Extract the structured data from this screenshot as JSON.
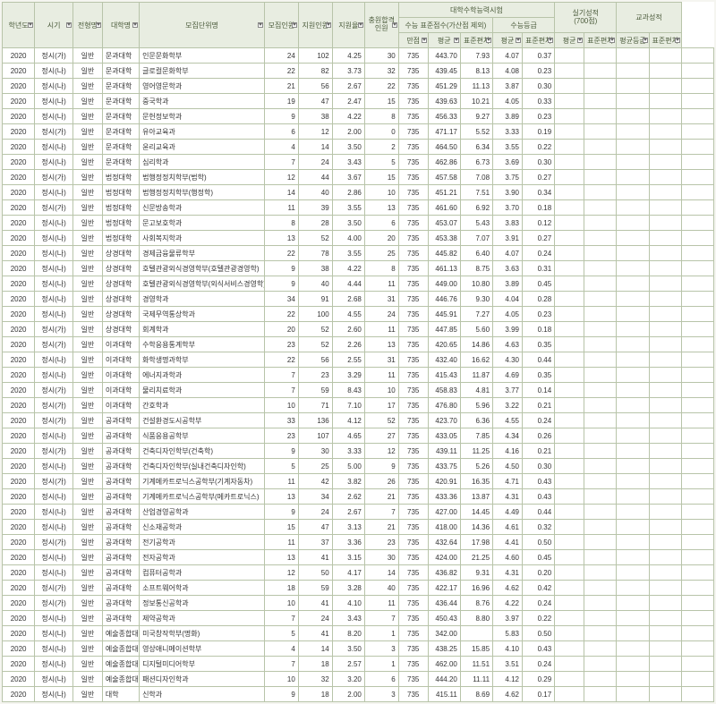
{
  "colors": {
    "header_bg": "#e8ede1",
    "border": "#b8c4a9",
    "text": "#333",
    "header_text": "#4a5a3a"
  },
  "fonts": {
    "size": 8,
    "family": "Malgun Gothic"
  },
  "header": {
    "r1": [
      "학년도",
      "시기",
      "전형명",
      "대학명",
      "모집단위명",
      "모집인원",
      "지원인원",
      "지원율",
      "충원합격\n인원",
      "대학수학능력시험",
      "실기성적\n(700점)",
      "교과성적"
    ],
    "r2_sub1": [
      "수능 표준점수(가산점 제외)",
      "수능등급"
    ],
    "r2_sub2": [
      "평균",
      "표준편차"
    ],
    "r2_sub3": [
      "평균등급",
      "표준편차"
    ],
    "r3": [
      "만점",
      "평균",
      "표준편차",
      "평균",
      "표준편차"
    ]
  },
  "rows": [
    [
      "2020",
      "정시(가)",
      "일반",
      "문과대학",
      "인문문화학부",
      "24",
      "102",
      "4.25",
      "30",
      "735",
      "443.70",
      "7.93",
      "4.07",
      "0.37",
      "",
      "",
      "",
      ""
    ],
    [
      "2020",
      "정시(나)",
      "일반",
      "문과대학",
      "글로컬문화학부",
      "22",
      "82",
      "3.73",
      "32",
      "735",
      "439.45",
      "8.13",
      "4.08",
      "0.23",
      "",
      "",
      "",
      ""
    ],
    [
      "2020",
      "정시(나)",
      "일반",
      "문과대학",
      "영어영문학과",
      "21",
      "56",
      "2.67",
      "22",
      "735",
      "451.29",
      "11.13",
      "3.87",
      "0.30",
      "",
      "",
      "",
      ""
    ],
    [
      "2020",
      "정시(나)",
      "일반",
      "문과대학",
      "중국학과",
      "19",
      "47",
      "2.47",
      "15",
      "735",
      "439.63",
      "10.21",
      "4.05",
      "0.33",
      "",
      "",
      "",
      ""
    ],
    [
      "2020",
      "정시(나)",
      "일반",
      "문과대학",
      "문헌정보학과",
      "9",
      "38",
      "4.22",
      "8",
      "735",
      "456.33",
      "9.27",
      "3.89",
      "0.23",
      "",
      "",
      "",
      ""
    ],
    [
      "2020",
      "정시(가)",
      "일반",
      "문과대학",
      "유아교육과",
      "6",
      "12",
      "2.00",
      "0",
      "735",
      "471.17",
      "5.52",
      "3.33",
      "0.19",
      "",
      "",
      "",
      ""
    ],
    [
      "2020",
      "정시(나)",
      "일반",
      "문과대학",
      "윤리교육과",
      "4",
      "14",
      "3.50",
      "2",
      "735",
      "464.50",
      "6.34",
      "3.55",
      "0.22",
      "",
      "",
      "",
      ""
    ],
    [
      "2020",
      "정시(나)",
      "일반",
      "문과대학",
      "심리학과",
      "7",
      "24",
      "3.43",
      "5",
      "735",
      "462.86",
      "6.73",
      "3.69",
      "0.30",
      "",
      "",
      "",
      ""
    ],
    [
      "2020",
      "정시(가)",
      "일반",
      "법정대학",
      "법행정정치학부(법학)",
      "12",
      "44",
      "3.67",
      "15",
      "735",
      "457.58",
      "7.08",
      "3.75",
      "0.27",
      "",
      "",
      "",
      ""
    ],
    [
      "2020",
      "정시(나)",
      "일반",
      "법정대학",
      "법행정정치학부(행정학)",
      "14",
      "40",
      "2.86",
      "10",
      "735",
      "451.21",
      "7.51",
      "3.90",
      "0.34",
      "",
      "",
      "",
      ""
    ],
    [
      "2020",
      "정시(가)",
      "일반",
      "법정대학",
      "신문방송학과",
      "11",
      "39",
      "3.55",
      "13",
      "735",
      "461.60",
      "6.92",
      "3.70",
      "0.18",
      "",
      "",
      "",
      ""
    ],
    [
      "2020",
      "정시(나)",
      "일반",
      "법정대학",
      "문고보호학과",
      "8",
      "28",
      "3.50",
      "6",
      "735",
      "453.07",
      "5.43",
      "3.83",
      "0.12",
      "",
      "",
      "",
      ""
    ],
    [
      "2020",
      "정시(나)",
      "일반",
      "법정대학",
      "사회복지학과",
      "13",
      "52",
      "4.00",
      "20",
      "735",
      "453.38",
      "7.07",
      "3.91",
      "0.27",
      "",
      "",
      "",
      ""
    ],
    [
      "2020",
      "정시(나)",
      "일반",
      "상경대학",
      "경제금융물류학부",
      "22",
      "78",
      "3.55",
      "25",
      "735",
      "445.82",
      "6.40",
      "4.07",
      "0.24",
      "",
      "",
      "",
      ""
    ],
    [
      "2020",
      "정시(나)",
      "일반",
      "상경대학",
      "호텔관광외식경영학부(호텔관광경영학)",
      "9",
      "38",
      "4.22",
      "8",
      "735",
      "461.13",
      "8.75",
      "3.63",
      "0.31",
      "",
      "",
      "",
      ""
    ],
    [
      "2020",
      "정시(나)",
      "일반",
      "상경대학",
      "호텔관광외식경영학부(외식서비스경영학)",
      "9",
      "40",
      "4.44",
      "11",
      "735",
      "449.00",
      "10.80",
      "3.89",
      "0.45",
      "",
      "",
      "",
      ""
    ],
    [
      "2020",
      "정시(나)",
      "일반",
      "상경대학",
      "경영학과",
      "34",
      "91",
      "2.68",
      "31",
      "735",
      "446.76",
      "9.30",
      "4.04",
      "0.28",
      "",
      "",
      "",
      ""
    ],
    [
      "2020",
      "정시(나)",
      "일반",
      "상경대학",
      "국제무역통상학과",
      "22",
      "100",
      "4.55",
      "24",
      "735",
      "445.91",
      "7.27",
      "4.05",
      "0.23",
      "",
      "",
      "",
      ""
    ],
    [
      "2020",
      "정시(가)",
      "일반",
      "상경대학",
      "회계학과",
      "20",
      "52",
      "2.60",
      "11",
      "735",
      "447.85",
      "5.60",
      "3.99",
      "0.18",
      "",
      "",
      "",
      ""
    ],
    [
      "2020",
      "정시(가)",
      "일반",
      "이과대학",
      "수학응용통계학부",
      "23",
      "52",
      "2.26",
      "13",
      "735",
      "420.65",
      "14.86",
      "4.63",
      "0.35",
      "",
      "",
      "",
      ""
    ],
    [
      "2020",
      "정시(나)",
      "일반",
      "이과대학",
      "화학생명과학부",
      "22",
      "56",
      "2.55",
      "31",
      "735",
      "432.40",
      "16.62",
      "4.30",
      "0.44",
      "",
      "",
      "",
      ""
    ],
    [
      "2020",
      "정시(나)",
      "일반",
      "이과대학",
      "에너지과학과",
      "7",
      "23",
      "3.29",
      "11",
      "735",
      "415.43",
      "11.87",
      "4.69",
      "0.35",
      "",
      "",
      "",
      ""
    ],
    [
      "2020",
      "정시(가)",
      "일반",
      "이과대학",
      "물리치료학과",
      "7",
      "59",
      "8.43",
      "10",
      "735",
      "458.83",
      "4.81",
      "3.77",
      "0.14",
      "",
      "",
      "",
      ""
    ],
    [
      "2020",
      "정시(가)",
      "일반",
      "이과대학",
      "간호학과",
      "10",
      "71",
      "7.10",
      "17",
      "735",
      "476.80",
      "5.96",
      "3.22",
      "0.21",
      "",
      "",
      "",
      ""
    ],
    [
      "2020",
      "정시(가)",
      "일반",
      "공과대학",
      "건설환경도시공학부",
      "33",
      "136",
      "4.12",
      "52",
      "735",
      "423.70",
      "6.36",
      "4.55",
      "0.24",
      "",
      "",
      "",
      ""
    ],
    [
      "2020",
      "정시(나)",
      "일반",
      "공과대학",
      "식품응용공학부",
      "23",
      "107",
      "4.65",
      "27",
      "735",
      "433.05",
      "7.85",
      "4.34",
      "0.26",
      "",
      "",
      "",
      ""
    ],
    [
      "2020",
      "정시(가)",
      "일반",
      "공과대학",
      "건축디자인학부(건축학)",
      "9",
      "30",
      "3.33",
      "12",
      "735",
      "439.11",
      "11.25",
      "4.16",
      "0.21",
      "",
      "",
      "",
      ""
    ],
    [
      "2020",
      "정시(나)",
      "일반",
      "공과대학",
      "건축디자인학부(실내건축디자인학)",
      "5",
      "25",
      "5.00",
      "9",
      "735",
      "433.75",
      "5.26",
      "4.50",
      "0.30",
      "",
      "",
      "",
      ""
    ],
    [
      "2020",
      "정시(가)",
      "일반",
      "공과대학",
      "기계메카트로닉스공학부(기계자동차)",
      "11",
      "42",
      "3.82",
      "26",
      "735",
      "420.91",
      "16.35",
      "4.71",
      "0.43",
      "",
      "",
      "",
      ""
    ],
    [
      "2020",
      "정시(나)",
      "일반",
      "공과대학",
      "기계메카트로닉스공학부(메카트로닉스)",
      "13",
      "34",
      "2.62",
      "21",
      "735",
      "433.36",
      "13.87",
      "4.31",
      "0.43",
      "",
      "",
      "",
      ""
    ],
    [
      "2020",
      "정시(나)",
      "일반",
      "공과대학",
      "산업경영공학과",
      "9",
      "24",
      "2.67",
      "7",
      "735",
      "427.00",
      "14.45",
      "4.49",
      "0.44",
      "",
      "",
      "",
      ""
    ],
    [
      "2020",
      "정시(나)",
      "일반",
      "공과대학",
      "신소재공학과",
      "15",
      "47",
      "3.13",
      "21",
      "735",
      "418.00",
      "14.36",
      "4.61",
      "0.32",
      "",
      "",
      "",
      ""
    ],
    [
      "2020",
      "정시(가)",
      "일반",
      "공과대학",
      "전기공학과",
      "11",
      "37",
      "3.36",
      "23",
      "735",
      "432.64",
      "17.98",
      "4.41",
      "0.50",
      "",
      "",
      "",
      ""
    ],
    [
      "2020",
      "정시(나)",
      "일반",
      "공과대학",
      "전자공학과",
      "13",
      "41",
      "3.15",
      "30",
      "735",
      "424.00",
      "21.25",
      "4.60",
      "0.45",
      "",
      "",
      "",
      ""
    ],
    [
      "2020",
      "정시(나)",
      "일반",
      "공과대학",
      "컴퓨터공학과",
      "12",
      "50",
      "4.17",
      "14",
      "735",
      "436.82",
      "9.31",
      "4.31",
      "0.20",
      "",
      "",
      "",
      ""
    ],
    [
      "2020",
      "정시(가)",
      "일반",
      "공과대학",
      "소프트웨어학과",
      "18",
      "59",
      "3.28",
      "40",
      "735",
      "422.17",
      "16.96",
      "4.62",
      "0.42",
      "",
      "",
      "",
      ""
    ],
    [
      "2020",
      "정시(가)",
      "일반",
      "공과대학",
      "정보통신공학과",
      "10",
      "41",
      "4.10",
      "11",
      "735",
      "436.44",
      "8.76",
      "4.22",
      "0.24",
      "",
      "",
      "",
      ""
    ],
    [
      "2020",
      "정시(나)",
      "일반",
      "공과대학",
      "제약공학과",
      "7",
      "24",
      "3.43",
      "7",
      "735",
      "450.43",
      "8.80",
      "3.97",
      "0.22",
      "",
      "",
      "",
      ""
    ],
    [
      "2020",
      "정시(나)",
      "일반",
      "예술종합대학",
      "미국창작학부(명화)",
      "5",
      "41",
      "8.20",
      "1",
      "735",
      "342.00",
      "",
      "5.83",
      "0.50",
      "",
      "",
      "",
      ""
    ],
    [
      "2020",
      "정시(나)",
      "일반",
      "예술종합대학",
      "영상애니메이션학부",
      "4",
      "14",
      "3.50",
      "3",
      "735",
      "438.25",
      "15.85",
      "4.10",
      "0.43",
      "",
      "",
      "",
      ""
    ],
    [
      "2020",
      "정시(나)",
      "일반",
      "예술종합대학",
      "디지털미디어학부",
      "7",
      "18",
      "2.57",
      "1",
      "735",
      "462.00",
      "11.51",
      "3.51",
      "0.24",
      "",
      "",
      "",
      ""
    ],
    [
      "2020",
      "정시(나)",
      "일반",
      "예술종합대학",
      "패션디자인학과",
      "10",
      "32",
      "3.20",
      "6",
      "735",
      "444.20",
      "11.11",
      "4.12",
      "0.29",
      "",
      "",
      "",
      ""
    ],
    [
      "2020",
      "정시(나)",
      "일반",
      "대학",
      "신학과",
      "9",
      "18",
      "2.00",
      "3",
      "735",
      "415.11",
      "8.69",
      "4.62",
      "0.17",
      "",
      "",
      "",
      ""
    ]
  ]
}
